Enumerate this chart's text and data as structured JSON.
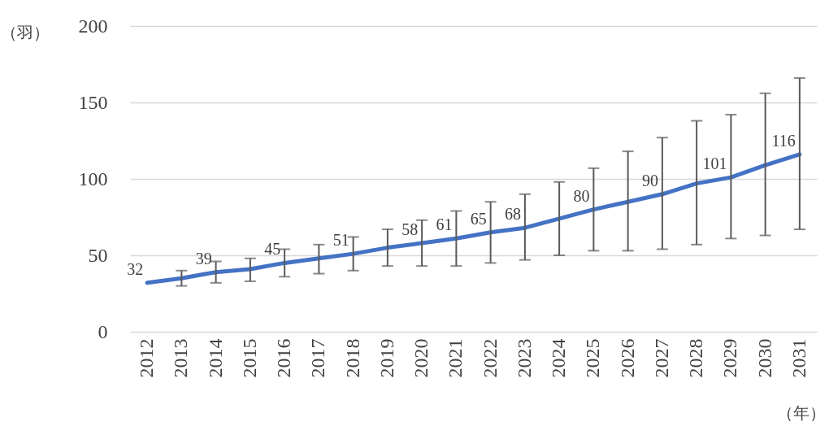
{
  "chart_data": {
    "type": "line",
    "ylabel": "（羽）",
    "xlabel": "（年）",
    "categories": [
      "2012",
      "2013",
      "2014",
      "2015",
      "2016",
      "2017",
      "2018",
      "2019",
      "2020",
      "2021",
      "2022",
      "2023",
      "2024",
      "2025",
      "2026",
      "2027",
      "2028",
      "2029",
      "2030",
      "2031"
    ],
    "series": [
      {
        "color": "#4472c4",
        "values": [
          32,
          35,
          39,
          41,
          45,
          48,
          51,
          55,
          58,
          61,
          65,
          68,
          74,
          80,
          85,
          90,
          97,
          101,
          109,
          116
        ],
        "value_labels": [
          "32",
          null,
          "39",
          null,
          "45",
          null,
          "51",
          null,
          "58",
          "61",
          "65",
          "68",
          null,
          "80",
          null,
          "90",
          null,
          "101",
          null,
          "116"
        ],
        "errors": [
          null,
          [
            30,
            40
          ],
          [
            32,
            46
          ],
          [
            33,
            48
          ],
          [
            36,
            54
          ],
          [
            38,
            57
          ],
          [
            40,
            62
          ],
          [
            43,
            67
          ],
          [
            43,
            73
          ],
          [
            43,
            79
          ],
          [
            45,
            85
          ],
          [
            47,
            90
          ],
          [
            50,
            98
          ],
          [
            53,
            107
          ],
          [
            53,
            118
          ],
          [
            54,
            127
          ],
          [
            57,
            138
          ],
          [
            61,
            142
          ],
          [
            63,
            156
          ],
          [
            67,
            166
          ]
        ]
      }
    ],
    "ylim": [
      0,
      200
    ],
    "yticks": [
      0,
      50,
      100,
      150,
      200
    ],
    "grid": "y",
    "legend": false,
    "marker": "none",
    "line_style": "solid"
  }
}
